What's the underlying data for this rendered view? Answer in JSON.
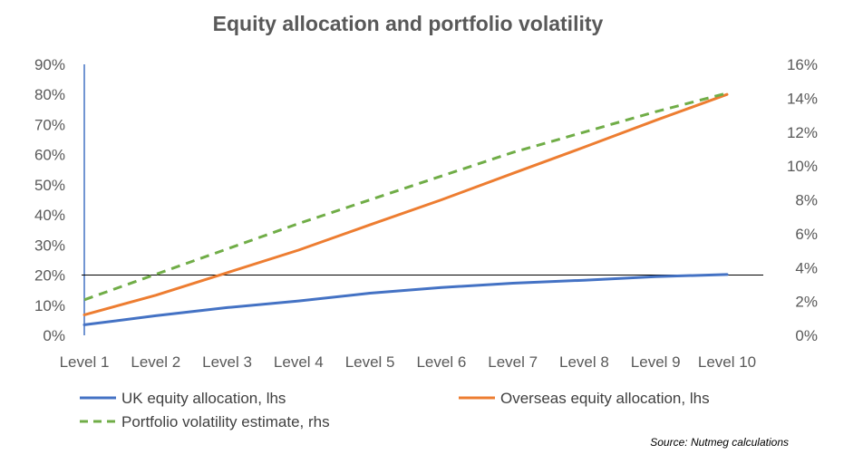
{
  "chart_data": {
    "type": "line",
    "title": "Equity allocation and portfolio volatility",
    "categories": [
      "Level 1",
      "Level 2",
      "Level 3",
      "Level 4",
      "Level 5",
      "Level 6",
      "Level 7",
      "Level 8",
      "Level 9",
      "Level 10"
    ],
    "left_axis": {
      "ticks": [
        "0%",
        "10%",
        "20%",
        "30%",
        "40%",
        "50%",
        "60%",
        "70%",
        "80%",
        "90%"
      ],
      "ylim": [
        0,
        90
      ]
    },
    "right_axis": {
      "ticks": [
        "0%",
        "2%",
        "4%",
        "6%",
        "8%",
        "10%",
        "12%",
        "14%",
        "16%"
      ],
      "ylim": [
        0,
        16
      ]
    },
    "reference_line": {
      "axis": "left",
      "value": 20
    },
    "series": [
      {
        "name": "UK equity allocation, lhs",
        "axis": "left",
        "color": "#4472C4",
        "style": "solid",
        "values": [
          3.5,
          6.5,
          9.2,
          11.4,
          14.0,
          15.9,
          17.3,
          18.3,
          19.5,
          20.2
        ]
      },
      {
        "name": "Overseas equity allocation, lhs",
        "axis": "left",
        "color": "#ED7D31",
        "style": "solid",
        "values": [
          6.8,
          13.3,
          20.8,
          28.3,
          36.7,
          45.0,
          53.8,
          62.5,
          71.4,
          80.0
        ]
      },
      {
        "name": "Portfolio volatility estimate, rhs",
        "axis": "right",
        "color": "#70AD47",
        "style": "dashed",
        "values": [
          2.1,
          3.6,
          5.1,
          6.6,
          8.0,
          9.4,
          10.8,
          12.0,
          13.2,
          14.3
        ]
      }
    ],
    "legend": {
      "position": "bottom"
    },
    "grid": false
  },
  "source_note": "Source: Nutmeg calculations"
}
